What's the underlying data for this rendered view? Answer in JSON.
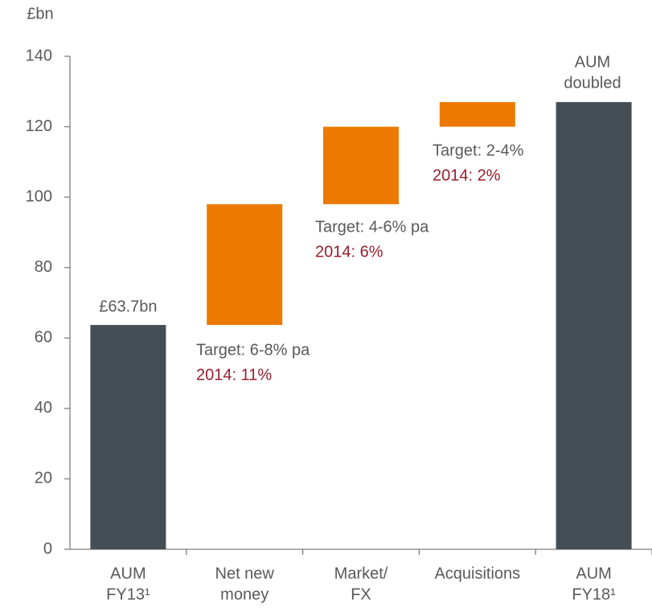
{
  "chart_data": {
    "type": "waterfall",
    "y_label": "£bn",
    "categories": [
      [
        "AUM",
        "FY13¹"
      ],
      [
        "Net new",
        "money"
      ],
      [
        "Market/",
        "FX"
      ],
      [
        "Acquisitions"
      ],
      [
        "AUM",
        "FY18¹"
      ]
    ],
    "values": [
      63.7,
      34.3,
      22,
      7,
      127
    ],
    "bar_kinds": [
      "total",
      "increase",
      "increase",
      "increase",
      "total"
    ],
    "colors": {
      "total": "#454e55",
      "increase": "#ec7a00"
    },
    "value_labels": [
      "£63.7bn",
      null,
      null,
      null,
      null
    ],
    "annotations": [
      {
        "text": "AUM",
        "color": "#595959"
      },
      {
        "text": "doubled",
        "color": "#595959"
      },
      {
        "text": "Target: 6-8% pa",
        "color": "#595959"
      },
      {
        "text": "2014: 11%",
        "color": "#9b1c2e"
      },
      {
        "text": "Target: 4-6% pa",
        "color": "#595959"
      },
      {
        "text": "2014: 6%",
        "color": "#9b1c2e"
      },
      {
        "text": "Target: 2-4%",
        "color": "#595959"
      },
      {
        "text": "2014: 2%",
        "color": "#9b1c2e"
      }
    ],
    "ylim": [
      0,
      140
    ],
    "yticks": [
      0,
      20,
      40,
      60,
      80,
      100,
      120,
      140
    ],
    "grid": false
  }
}
